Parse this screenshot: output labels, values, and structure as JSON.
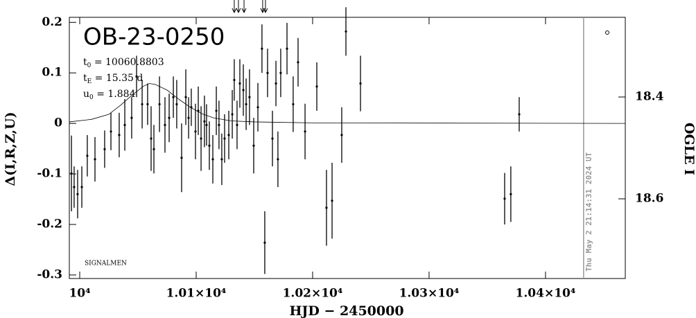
{
  "chart_data": {
    "type": "scatter",
    "title": "OB-23-0250",
    "x_label": "HJD − 2450000",
    "y_label": "Δ(I,R,Z,U)",
    "y2_label": "OGLE I",
    "footer": "SIGNALMEN",
    "params": [
      {
        "symbol": "t",
        "sub": "0",
        "text": " = 10060.8803"
      },
      {
        "symbol": "t",
        "sub": "E",
        "text": " = 15.35 d"
      },
      {
        "symbol": "u",
        "sub": "0",
        "text": " = 1.884"
      }
    ],
    "xlim": [
      9999.107,
      10046.85
    ],
    "ylim": [
      -0.307,
      0.21
    ],
    "y2lim": [
      18.7565,
      18.2435
    ],
    "xticks": [
      {
        "value": 10000,
        "label": "10⁴"
      },
      {
        "value": 10010,
        "label": "1.01×10⁴"
      },
      {
        "value": 10020,
        "label": "1.02×10⁴"
      },
      {
        "value": 10030,
        "label": "1.03×10⁴"
      },
      {
        "value": 10040,
        "label": "1.04×10⁴"
      }
    ],
    "yticks": [
      -0.3,
      -0.2,
      -0.1,
      0,
      0.1,
      0.2
    ],
    "y2ticks": [
      18.4,
      18.6
    ],
    "color": "#000000",
    "x": [
      9999.29,
      9999.52,
      9999.82,
      10000.18,
      10000.65,
      10001.31,
      10002.14,
      10002.68,
      10003.39,
      10003.87,
      10004.46,
      10004.88,
      10005.36,
      10005.83,
      10006.13,
      10006.37,
      10006.85,
      10007.32,
      10007.68,
      10008.04,
      10008.33,
      10008.75,
      10009.11,
      10009.35,
      10009.58,
      10009.94,
      10010.18,
      10010.42,
      10010.71,
      10010.89,
      10011.13,
      10011.43,
      10011.73,
      10011.96,
      10012.2,
      10012.44,
      10012.8,
      10013.1,
      10013.27,
      10013.51,
      10013.75,
      10014.05,
      10014.29,
      10014.58,
      10014.94,
      10015.3,
      10015.65,
      10015.89,
      10016.13,
      10016.55,
      10016.85,
      10017.02,
      10017.26,
      10017.8,
      10018.33,
      10018.75,
      10019.35,
      10020.36,
      10021.19,
      10021.67,
      10022.5,
      10022.86,
      10024.11,
      10036.49,
      10037.02,
      10037.74
    ],
    "values": [
      -0.099,
      -0.126,
      -0.14,
      -0.126,
      -0.064,
      -0.071,
      -0.051,
      -0.016,
      -0.023,
      -0.003,
      0.011,
      0.093,
      0.038,
      0.038,
      -0.03,
      -0.051,
      0.038,
      -0.003,
      0.011,
      0.052,
      0.038,
      -0.068,
      0.052,
      0.011,
      0.032,
      -0.016,
      0.025,
      -0.03,
      0.004,
      -0.003,
      -0.044,
      -0.071,
      0.025,
      -0.003,
      -0.071,
      -0.03,
      -0.023,
      0.018,
      0.086,
      -0.003,
      0.079,
      0.066,
      0.038,
      0.052,
      -0.044,
      0.032,
      0.148,
      -0.236,
      0.1,
      -0.03,
      0.079,
      -0.071,
      0.1,
      0.148,
      0.038,
      0.121,
      -0.016,
      0.073,
      -0.167,
      -0.153,
      -0.023,
      0.182,
      0.079,
      -0.149,
      -0.14,
      0.018
    ],
    "errors": [
      0.075,
      0.041,
      0.048,
      0.041,
      0.041,
      0.044,
      0.037,
      0.037,
      0.044,
      0.051,
      0.041,
      0.041,
      0.048,
      0.041,
      0.064,
      0.048,
      0.055,
      0.055,
      0.048,
      0.041,
      0.048,
      0.068,
      0.055,
      0.041,
      0.037,
      0.055,
      0.048,
      0.064,
      0.051,
      0.041,
      0.048,
      0.048,
      0.048,
      0.048,
      0.051,
      0.048,
      0.048,
      0.048,
      0.041,
      0.048,
      0.048,
      0.051,
      0.051,
      0.055,
      0.055,
      0.048,
      0.048,
      0.062,
      0.048,
      0.055,
      0.045,
      0.055,
      0.048,
      0.051,
      0.055,
      0.048,
      0.055,
      0.048,
      0.075,
      0.075,
      0.055,
      0.048,
      0.055,
      0.051,
      0.055,
      0.034
    ],
    "model": {
      "x": [
        9999.107,
        10001,
        10002.5,
        10003.5,
        10004.5,
        10005.5,
        10006,
        10006.5,
        10007.5,
        10008.5,
        10009.5,
        10010.5,
        10011.5,
        10013,
        10015,
        10020,
        10046.85
      ],
      "values": [
        0.003,
        0.008,
        0.018,
        0.036,
        0.056,
        0.074,
        0.079,
        0.077,
        0.066,
        0.048,
        0.032,
        0.019,
        0.011,
        0.005,
        0.003,
        0.001,
        0
      ]
    },
    "arrows": [
      10013.27,
      10013.63,
      10014.11,
      10015.71,
      10015.95
    ],
    "date_line": {
      "x": 10043.27,
      "label": "Thu May  2 21:14:31 2024 UT",
      "color": "#999999"
    }
  }
}
